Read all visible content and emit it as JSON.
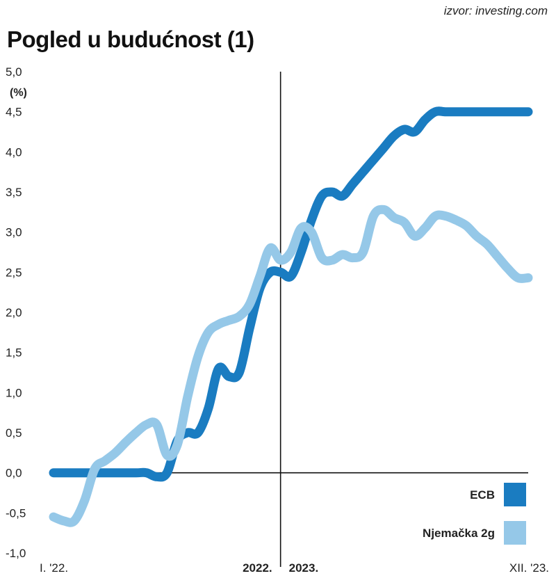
{
  "header": {
    "source": "izvor: investing.com",
    "title": "Pogled u budućnost (1)"
  },
  "colors": {
    "ecb": "#1a7cc1",
    "germany": "#95c8e8",
    "axis": "#111111"
  },
  "chart_data": {
    "type": "line",
    "title": "Pogled u budućnost (1)",
    "ylabel": "(%)",
    "ylim": [
      -1.0,
      5.0
    ],
    "yticks": [
      -1.0,
      -0.5,
      0.0,
      0.5,
      1.0,
      1.5,
      2.0,
      2.5,
      3.0,
      3.5,
      4.0,
      4.5,
      5.0
    ],
    "ytick_labels": [
      "-1,0",
      "-0,5",
      "0,0",
      "0,5",
      "1,0",
      "1,5",
      "2,0",
      "2,5",
      "3,0",
      "3,5",
      "4,0",
      "4,5",
      "5,0"
    ],
    "xlim": [
      0,
      23
    ],
    "x_labels": [
      {
        "x": 0,
        "text": "I. '22.",
        "bold": false,
        "align": "start"
      },
      {
        "x": 11,
        "text": "2022.",
        "bold": true,
        "align": "end"
      },
      {
        "x": 11,
        "text": "2023.",
        "bold": true,
        "align": "start"
      },
      {
        "x": 23,
        "text": "XII. '23.",
        "bold": false,
        "align": "end"
      }
    ],
    "divider_x": 11,
    "series": [
      {
        "name": "ECB",
        "key": "ecb",
        "x": [
          0,
          1,
          2,
          3,
          4,
          4.5,
          5,
          5.5,
          6,
          6.5,
          7,
          7.5,
          8,
          8.5,
          9,
          9.5,
          10,
          10.5,
          11,
          11.5,
          12,
          12.5,
          13,
          13.5,
          14,
          14.5,
          15,
          15.5,
          16,
          16.5,
          17,
          17.5,
          18,
          18.5,
          19,
          19.5,
          20,
          21,
          22,
          23
        ],
        "values": [
          0,
          0,
          0,
          0,
          0,
          0,
          -0.05,
          0,
          0.4,
          0.5,
          0.5,
          0.8,
          1.3,
          1.2,
          1.25,
          1.8,
          2.3,
          2.5,
          2.5,
          2.45,
          2.75,
          3.15,
          3.45,
          3.5,
          3.45,
          3.6,
          3.75,
          3.9,
          4.05,
          4.2,
          4.28,
          4.25,
          4.4,
          4.5,
          4.5,
          4.5,
          4.5,
          4.5,
          4.5,
          4.5
        ]
      },
      {
        "name": "Njemačka 2g",
        "key": "germany",
        "x": [
          0,
          0.5,
          1,
          1.5,
          2,
          2.5,
          3,
          3.5,
          4,
          4.5,
          5,
          5.5,
          6,
          6.5,
          7,
          7.5,
          8,
          8.5,
          9,
          9.5,
          10,
          10.5,
          11,
          11.5,
          12,
          12.5,
          13,
          13.5,
          14,
          14.5,
          15,
          15.5,
          16,
          16.5,
          17,
          17.5,
          18,
          18.5,
          19,
          19.5,
          20,
          20.5,
          21,
          21.5,
          22,
          22.5,
          23
        ],
        "values": [
          -0.55,
          -0.6,
          -0.6,
          -0.35,
          0.05,
          0.15,
          0.25,
          0.38,
          0.5,
          0.6,
          0.6,
          0.22,
          0.35,
          0.95,
          1.45,
          1.75,
          1.85,
          1.9,
          1.95,
          2.1,
          2.45,
          2.8,
          2.65,
          2.75,
          3.05,
          3.0,
          2.68,
          2.65,
          2.72,
          2.68,
          2.75,
          3.2,
          3.28,
          3.18,
          3.12,
          2.95,
          3.05,
          3.2,
          3.2,
          3.15,
          3.08,
          2.95,
          2.85,
          2.7,
          2.55,
          2.43,
          2.43
        ]
      }
    ],
    "legend": [
      {
        "label": "ECB",
        "key": "ecb"
      },
      {
        "label": "Njemačka 2g",
        "key": "germany"
      }
    ],
    "legend_position": "bottom-right"
  }
}
